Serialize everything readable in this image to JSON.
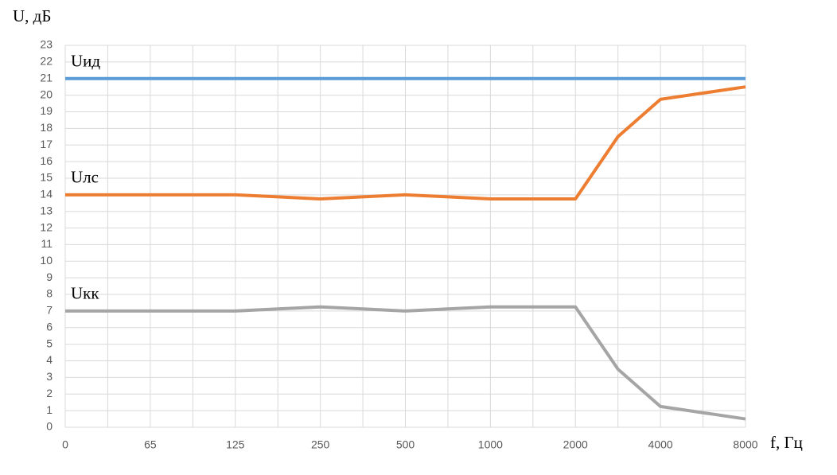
{
  "chart_data": {
    "type": "line",
    "y_label": "U, дБ",
    "x_label": "f, Гц",
    "categories": [
      "0",
      null,
      "65",
      null,
      "125",
      null,
      "250",
      null,
      "500",
      null,
      "1000",
      null,
      "2000",
      null,
      "4000",
      null,
      "8000"
    ],
    "series": [
      {
        "name": "Uид",
        "color": "#5b9bd5",
        "values": [
          21,
          21,
          21,
          21,
          21,
          21,
          21,
          21,
          21,
          21,
          21,
          21,
          21,
          21,
          21,
          21,
          21
        ]
      },
      {
        "name": "Uлс",
        "color": "#ed7d31",
        "values": [
          14,
          14,
          14,
          14,
          14,
          13.875,
          13.75,
          13.875,
          14,
          13.875,
          13.75,
          13.75,
          13.75,
          17.5,
          19.75,
          20.125,
          20.5
        ]
      },
      {
        "name": "Uкк",
        "color": "#a5a5a5",
        "values": [
          7,
          7,
          7,
          7,
          7,
          7.125,
          7.25,
          7.125,
          7,
          7.125,
          7.25,
          7.25,
          7.25,
          3.5,
          1.25,
          0.875,
          0.5
        ]
      }
    ],
    "ylim": [
      0,
      23
    ],
    "yticks": [
      0,
      1,
      2,
      3,
      4,
      5,
      6,
      7,
      8,
      9,
      10,
      11,
      12,
      13,
      14,
      15,
      16,
      17,
      18,
      19,
      20,
      21,
      22,
      23
    ],
    "grid": true
  }
}
